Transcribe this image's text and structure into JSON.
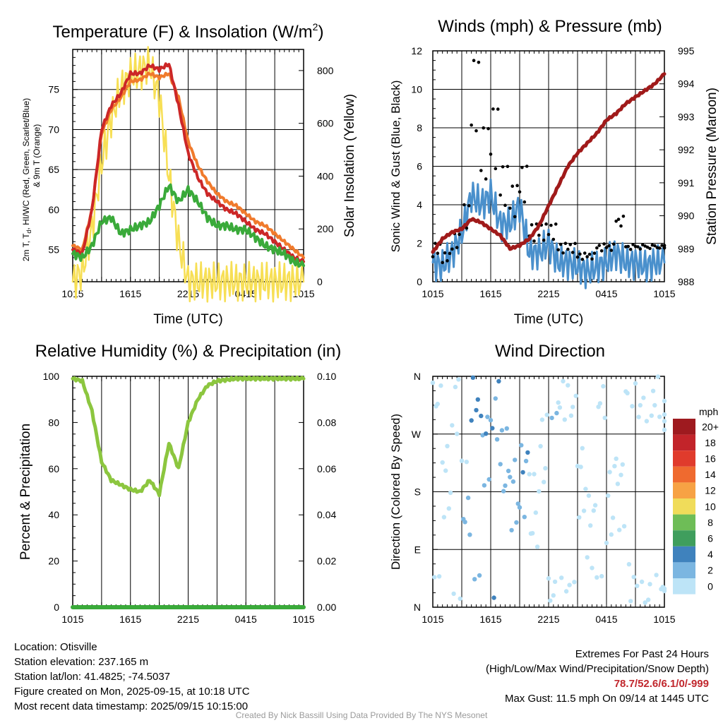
{
  "colors": {
    "red": "#cc2727",
    "orange": "#f07a2c",
    "green": "#3aaa3a",
    "yellow": "#f7df55",
    "wind_blue": "#4a90cc",
    "gust_black": "#000000",
    "maroon": "#a01a1a",
    "rh_green": "#8cc63f",
    "precip_green": "#3aaa3a",
    "extremes_red": "#c1272d",
    "credit_gray": "#9a9a9a"
  },
  "x_ticks": [
    "1015",
    "1615",
    "2215",
    "0415",
    "1015"
  ],
  "charts": [
    {
      "id": "temp",
      "title_main": "Temperature (F) & Insolation (W/m",
      "title_sup": "2",
      "title_tail": ")",
      "xlabel": "Time (UTC)",
      "ylabel_line1": "2m T, T",
      "ylabel_sub": "d",
      "ylabel_line1_tail": ", HI/WC (Red, Green, Scarlet/Blue)",
      "ylabel_line2": "& 9m T (Orange)",
      "y2label": "Solar Insolation (Yellow)",
      "yticks": [
        "55",
        "60",
        "65",
        "70",
        "75"
      ],
      "y2ticks": [
        "0",
        "200",
        "400",
        "600",
        "800"
      ]
    },
    {
      "id": "wind",
      "title": "Winds (mph) & Pressure (mb)",
      "xlabel": "Time (UTC)",
      "ylabel": "Sonic Wind & Gust (Blue, Black)",
      "y2label": "Station Pressure (Maroon)",
      "yticks": [
        "0",
        "2",
        "4",
        "6",
        "8",
        "10",
        "12"
      ],
      "y2ticks": [
        "988",
        "989",
        "990",
        "991",
        "992",
        "993",
        "994",
        "995"
      ]
    },
    {
      "id": "rh",
      "title": "Relative Humidity (%) & Precipitation (in)",
      "ylabel": "Percent & Precipitation",
      "yticks": [
        "0",
        "20",
        "40",
        "60",
        "80",
        "100"
      ],
      "y2ticks": [
        "0.00",
        "0.02",
        "0.04",
        "0.06",
        "0.08",
        "0.10"
      ]
    },
    {
      "id": "dir",
      "title": "Wind Direction",
      "ylabel": "Direction (Colored By Speed)",
      "yticks": [
        "N",
        "E",
        "S",
        "W",
        "N"
      ]
    }
  ],
  "colorbar": {
    "unit": "mph",
    "labels": [
      "20+",
      "18",
      "16",
      "14",
      "12",
      "10",
      "8",
      "6",
      "4",
      "2",
      "0"
    ],
    "colors": [
      "#9e1a1f",
      "#c2242a",
      "#e03b2c",
      "#ef6a2f",
      "#f7a244",
      "#f0dc5a",
      "#6ebd57",
      "#3f9e5d",
      "#3f82bd",
      "#7bb6e1",
      "#bde4f7"
    ]
  },
  "chart_data": [
    {
      "type": "line",
      "title": "Temperature (F) & Insolation (W/m2)",
      "xlabel": "Time (UTC)",
      "ylabel": "2m T, Td, HI/WC (Red, Green, Scarlet/Blue) & 9m T (Orange)",
      "y2label": "Solar Insolation (Yellow)",
      "x": [
        "1015",
        "1115",
        "1215",
        "1315",
        "1415",
        "1515",
        "1615",
        "1715",
        "1815",
        "1915",
        "2015",
        "2115",
        "2215",
        "2315",
        "0015",
        "0115",
        "0215",
        "0315",
        "0415",
        "0515",
        "0615",
        "0715",
        "0815",
        "0915",
        "1015"
      ],
      "ylim": [
        51,
        80
      ],
      "y2lim": [
        0,
        880
      ],
      "series": [
        {
          "name": "2m T",
          "color": "#cc2727",
          "values": [
            55,
            54.5,
            60,
            70,
            73,
            74.5,
            77,
            77,
            78,
            77.5,
            78.2,
            73,
            67,
            64,
            62,
            61,
            60,
            59.5,
            58.5,
            57.5,
            57,
            56,
            55,
            54,
            53.5
          ]
        },
        {
          "name": "9m T",
          "color": "#f07a2c",
          "values": [
            55.5,
            55,
            60,
            69.5,
            72.5,
            74,
            76,
            76.2,
            77,
            76.5,
            77,
            74,
            68.5,
            65.5,
            63.5,
            62,
            61,
            60.5,
            59.5,
            58.5,
            58,
            57,
            56,
            55,
            54
          ]
        },
        {
          "name": "Td",
          "color": "#3aaa3a",
          "values": [
            54.5,
            54,
            55.5,
            58.5,
            59,
            57,
            57.5,
            58,
            58.5,
            60.5,
            63,
            61,
            62.5,
            61,
            59,
            58,
            58,
            57.5,
            57.5,
            56.5,
            55.5,
            55,
            54.5,
            53.5,
            53
          ]
        },
        {
          "name": "Solar Insolation",
          "color": "#f7df55",
          "axis": "y2",
          "values": [
            0,
            40,
            200,
            450,
            620,
            730,
            780,
            800,
            820,
            700,
            400,
            150,
            0,
            0,
            0,
            0,
            0,
            0,
            0,
            0,
            0,
            0,
            0,
            0,
            0
          ]
        }
      ]
    },
    {
      "type": "line",
      "title": "Winds (mph) & Pressure (mb)",
      "xlabel": "Time (UTC)",
      "ylabel": "Sonic Wind & Gust (Blue, Black)",
      "y2label": "Station Pressure (Maroon)",
      "x": [
        "1015",
        "1115",
        "1215",
        "1315",
        "1415",
        "1515",
        "1615",
        "1715",
        "1815",
        "1915",
        "2015",
        "2115",
        "2215",
        "2315",
        "0015",
        "0115",
        "0215",
        "0315",
        "0415",
        "0515",
        "0615",
        "0715",
        "0815",
        "0915",
        "1015"
      ],
      "ylim": [
        0,
        12
      ],
      "y2lim": [
        988,
        995
      ],
      "series": [
        {
          "name": "Sonic Wind",
          "color": "#4a90cc",
          "values": [
            1,
            0.8,
            1.5,
            2.5,
            4.5,
            4,
            4.5,
            3,
            3,
            4,
            1.5,
            1.5,
            2,
            1,
            1,
            0.8,
            0.5,
            0.8,
            1,
            1.5,
            1,
            1,
            0.8,
            1,
            1
          ]
        },
        {
          "name": "Gust",
          "color": "#000000",
          "values": [
            2,
            1.5,
            2.5,
            4,
            11.5,
            8,
            9,
            6,
            5,
            6,
            3,
            3,
            3,
            2,
            2,
            1.5,
            1.5,
            2,
            2,
            3.5,
            2,
            2,
            2,
            2,
            2
          ]
        },
        {
          "name": "Station Pressure",
          "color": "#a01a1a",
          "axis": "y2",
          "values": [
            988.9,
            989.3,
            989.5,
            989.6,
            989.9,
            989.8,
            989.6,
            989.4,
            989.0,
            989.1,
            989.3,
            989.7,
            990.3,
            990.9,
            991.5,
            991.9,
            992.2,
            992.5,
            992.9,
            993.1,
            993.4,
            993.6,
            993.8,
            994.0,
            994.3
          ]
        }
      ]
    },
    {
      "type": "line",
      "title": "Relative Humidity (%) & Precipitation (in)",
      "ylabel": "Percent & Precipitation",
      "x": [
        "1015",
        "1115",
        "1215",
        "1315",
        "1415",
        "1515",
        "1615",
        "1715",
        "1815",
        "1915",
        "2015",
        "2115",
        "2215",
        "2315",
        "0015",
        "0115",
        "0215",
        "0315",
        "0415",
        "0515",
        "0615",
        "0715",
        "0815",
        "0915",
        "1015"
      ],
      "ylim": [
        0,
        100
      ],
      "y2lim": [
        0,
        0.1
      ],
      "series": [
        {
          "name": "Relative Humidity",
          "color": "#8cc63f",
          "values": [
            99,
            98,
            85,
            63,
            55,
            53,
            51,
            50,
            55,
            49,
            71,
            60,
            80,
            90,
            96,
            98,
            98.5,
            99,
            99,
            99,
            99,
            99,
            99,
            99,
            99
          ]
        },
        {
          "name": "Precipitation",
          "color": "#3aaa3a",
          "axis": "y2",
          "values": [
            0,
            0,
            0,
            0,
            0,
            0,
            0,
            0,
            0,
            0,
            0,
            0,
            0,
            0,
            0,
            0,
            0,
            0,
            0,
            0,
            0,
            0,
            0,
            0,
            0
          ]
        }
      ]
    },
    {
      "type": "scatter",
      "title": "Wind Direction",
      "ylabel": "Direction (Colored By Speed)",
      "x": [
        "1015",
        "1115",
        "1215",
        "1315",
        "1415",
        "1515",
        "1615",
        "1715",
        "1815",
        "1915",
        "2015",
        "2115",
        "2215",
        "2315",
        "0015",
        "0115",
        "0215",
        "0315",
        "0415",
        "0515",
        "0615",
        "0715",
        "0815",
        "0915",
        "1015"
      ],
      "ylim": [
        0,
        360
      ],
      "series": [
        {
          "name": "Direction",
          "values": [
            350,
            200,
            330,
            170,
            350,
            250,
            320,
            220,
            180,
            200,
            150,
            240,
            355,
            350,
            340,
            200,
            120,
            350,
            160,
            180,
            10,
            340,
            350,
            355,
            330
          ]
        }
      ]
    }
  ],
  "info_left": [
    "Location: Otisville",
    "Station elevation: 237.165 m",
    "Station lat/lon: 41.4825; -74.5037",
    "Figure created on Mon, 2025-09-15, at 10:18 UTC",
    "Most recent data timestamp: 2025/09/15 10:15:00"
  ],
  "info_right": {
    "title": "Extremes For Past 24 Hours",
    "subtitle": "(High/Low/Max Wind/Precipitation/Snow Depth)",
    "values": "78.7/52.6/6.1/0/-999",
    "max_gust": "Max Gust: 11.5 mph On 09/14 at 1445 UTC"
  },
  "credit": "Created By Nick Bassill Using Data Provided By The NYS Mesonet"
}
